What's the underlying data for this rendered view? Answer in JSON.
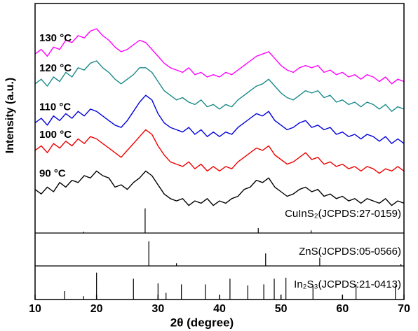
{
  "chart_data": {
    "type": "line",
    "xlabel": "2θ (degree)",
    "ylabel": "Intensity (a.u.)",
    "xlim": [
      10,
      70
    ],
    "xticks": [
      10,
      20,
      30,
      40,
      50,
      60,
      70
    ],
    "ylim": [
      0,
      100
    ],
    "x": [
      10,
      11,
      12,
      13,
      14,
      15,
      16,
      17,
      18,
      19,
      20,
      21,
      22,
      23,
      24,
      25,
      26,
      27,
      28,
      29,
      30,
      31,
      32,
      33,
      34,
      35,
      36,
      37,
      38,
      39,
      40,
      41,
      42,
      43,
      44,
      45,
      46,
      47,
      48,
      49,
      50,
      51,
      52,
      53,
      54,
      55,
      56,
      57,
      58,
      59,
      60,
      61,
      62,
      63,
      64,
      65,
      66,
      67,
      68,
      69,
      70
    ],
    "series": [
      {
        "name": "90 °C",
        "color": "#000000",
        "values": [
          19,
          17,
          20,
          18,
          22,
          20,
          23,
          22,
          25,
          24,
          27,
          25,
          24,
          20,
          21,
          19,
          22,
          24,
          27,
          25,
          21,
          17,
          15,
          14,
          15,
          12,
          14,
          13,
          15,
          12,
          14,
          13,
          15,
          16,
          19,
          20,
          23,
          22,
          24,
          20,
          18,
          16,
          17,
          19,
          20,
          18,
          19,
          16,
          17,
          15,
          16,
          14,
          15,
          13,
          15,
          14,
          13,
          15,
          12,
          14,
          13
        ]
      },
      {
        "name": "100 °C",
        "color": "#ee0000",
        "values": [
          36,
          38,
          35,
          39,
          37,
          40,
          38,
          41,
          39,
          42,
          41,
          39,
          37,
          35,
          33,
          36,
          39,
          42,
          45,
          43,
          38,
          34,
          31,
          30,
          29,
          31,
          28,
          30,
          27,
          29,
          27,
          29,
          28,
          31,
          33,
          35,
          37,
          36,
          38,
          34,
          32,
          30,
          31,
          33,
          35,
          32,
          33,
          30,
          31,
          29,
          30,
          28,
          29,
          27,
          29,
          28,
          26,
          28,
          27,
          29,
          27
        ]
      },
      {
        "name": "110 °C",
        "color": "#0000dd",
        "values": [
          48,
          50,
          47,
          51,
          49,
          52,
          50,
          53,
          51,
          54,
          53,
          51,
          49,
          47,
          46,
          49,
          53,
          57,
          60,
          58,
          52,
          48,
          46,
          45,
          44,
          46,
          43,
          45,
          42,
          44,
          42,
          44,
          43,
          46,
          48,
          50,
          52,
          51,
          53,
          49,
          47,
          45,
          46,
          48,
          49,
          46,
          47,
          45,
          46,
          43,
          44,
          42,
          43,
          41,
          43,
          42,
          40,
          42,
          39,
          41,
          39
        ]
      },
      {
        "name": "120 °C",
        "color": "#1a8a8a",
        "values": [
          65,
          67,
          64,
          68,
          66,
          70,
          68,
          72,
          71,
          74,
          75,
          72,
          70,
          67,
          65,
          67,
          69,
          72,
          72,
          70,
          66,
          62,
          60,
          58,
          59,
          57,
          56,
          58,
          55,
          56,
          54,
          56,
          55,
          58,
          60,
          62,
          64,
          65,
          67,
          64,
          61,
          59,
          58,
          60,
          62,
          61,
          62,
          59,
          60,
          57,
          58,
          56,
          57,
          55,
          57,
          56,
          54,
          56,
          53,
          55,
          54
        ]
      },
      {
        "name": "130 °C",
        "color": "#ff00ff",
        "values": [
          78,
          80,
          77,
          81,
          80,
          84,
          83,
          86,
          85,
          88,
          89,
          86,
          84,
          81,
          79,
          80,
          82,
          84,
          83,
          80,
          77,
          74,
          72,
          71,
          70,
          72,
          69,
          70,
          68,
          69,
          68,
          70,
          69,
          71,
          73,
          75,
          77,
          78,
          79,
          76,
          73,
          71,
          70,
          72,
          73,
          72,
          73,
          70,
          71,
          69,
          70,
          68,
          69,
          67,
          69,
          68,
          66,
          68,
          65,
          67,
          66
        ]
      }
    ],
    "references": [
      {
        "name": "CuInS₂(JCPDS:27-0159)",
        "peaks": [
          17.9,
          27.9,
          46.3,
          54.9
        ],
        "intensities": [
          4,
          75,
          15,
          8
        ]
      },
      {
        "name": "ZnS(JCPDS:05-0566)",
        "peaks": [
          28.5,
          33.0,
          47.5,
          56.3,
          69.5
        ],
        "intensities": [
          75,
          8,
          38,
          25,
          6
        ]
      },
      {
        "name": "In₂S₃(JCPDS:21-0413)",
        "peaks": [
          14.8,
          17.9,
          20.0,
          26.0,
          30.0,
          31.3,
          33.8,
          37.7,
          41.7,
          44.6,
          47.2,
          48.9,
          50.8,
          55.2,
          62.2,
          68.6
        ],
        "intensities": [
          25,
          10,
          80,
          62,
          48,
          20,
          45,
          45,
          62,
          42,
          45,
          62,
          65,
          40,
          45,
          42
        ]
      }
    ]
  }
}
